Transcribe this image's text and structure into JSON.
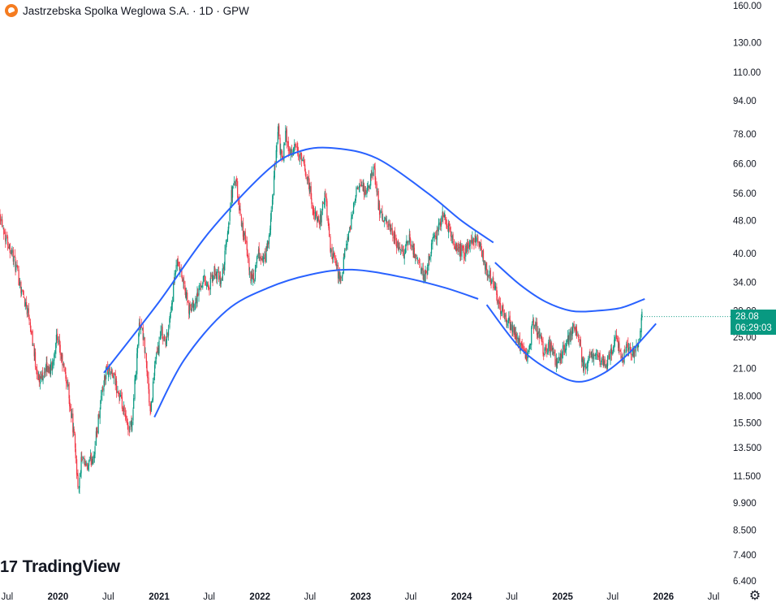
{
  "header": {
    "title": "Jastrzebska Spolka Weglowa S.A. · 1D · GPW"
  },
  "watermark": {
    "mark": "17",
    "text": "TradingView"
  },
  "last_price": {
    "value": "28.08",
    "countdown": "06:29:03",
    "color": "#089981"
  },
  "colors": {
    "up": "#089981",
    "down": "#f23645",
    "channel": "#2962ff"
  },
  "icons": {
    "settings": "gear-icon"
  },
  "chart_data": {
    "type": "candlestick",
    "y_scale": "log",
    "ylim": [
      6.2,
      165
    ],
    "xlim": [
      "2019-06-05",
      "2026-08-20"
    ],
    "y_ticks": [
      "160.00",
      "130.00",
      "110.00",
      "94.00",
      "78.00",
      "66.00",
      "56.00",
      "48.00",
      "40.00",
      "34.00",
      "29.00",
      "25.00",
      "21.00",
      "18.000",
      "15.500",
      "13.500",
      "11.500",
      "9.900",
      "8.500",
      "7.400",
      "6.400"
    ],
    "x_ticks": [
      {
        "label": "Jul",
        "date": "2019-07-01"
      },
      {
        "label": "2020",
        "date": "2020-01-01"
      },
      {
        "label": "Jul",
        "date": "2020-07-01"
      },
      {
        "label": "2021",
        "date": "2021-01-01"
      },
      {
        "label": "Jul",
        "date": "2021-07-01"
      },
      {
        "label": "2022",
        "date": "2022-01-01"
      },
      {
        "label": "Jul",
        "date": "2022-07-01"
      },
      {
        "label": "2023",
        "date": "2023-01-01"
      },
      {
        "label": "Jul",
        "date": "2023-07-01"
      },
      {
        "label": "2024",
        "date": "2024-01-01"
      },
      {
        "label": "Jul",
        "date": "2024-07-01"
      },
      {
        "label": "2025",
        "date": "2025-01-01"
      },
      {
        "label": "Jul",
        "date": "2025-07-01"
      },
      {
        "label": "2026",
        "date": "2026-01-01"
      },
      {
        "label": "Jul",
        "date": "2026-07-01"
      }
    ],
    "price_path": [
      [
        "2019-06-05",
        50
      ],
      [
        "2019-06-25",
        44
      ],
      [
        "2019-07-20",
        40
      ],
      [
        "2019-08-20",
        33
      ],
      [
        "2019-09-20",
        28
      ],
      [
        "2019-10-10",
        22
      ],
      [
        "2019-10-25",
        19.5
      ],
      [
        "2019-11-15",
        21
      ],
      [
        "2019-12-10",
        21
      ],
      [
        "2019-12-25",
        25
      ],
      [
        "2020-01-15",
        22
      ],
      [
        "2020-02-05",
        19
      ],
      [
        "2020-02-25",
        15
      ],
      [
        "2020-03-16",
        10.5
      ],
      [
        "2020-03-25",
        12.5
      ],
      [
        "2020-04-15",
        12
      ],
      [
        "2020-05-10",
        13
      ],
      [
        "2020-06-05",
        18
      ],
      [
        "2020-06-25",
        21
      ],
      [
        "2020-07-20",
        20
      ],
      [
        "2020-08-15",
        17.5
      ],
      [
        "2020-09-10",
        15
      ],
      [
        "2020-09-25",
        15.5
      ],
      [
        "2020-10-15",
        24
      ],
      [
        "2020-10-25",
        28
      ],
      [
        "2020-11-15",
        22
      ],
      [
        "2020-12-01",
        16
      ],
      [
        "2020-12-15",
        21
      ],
      [
        "2021-01-10",
        26
      ],
      [
        "2021-01-25",
        24
      ],
      [
        "2021-02-15",
        30
      ],
      [
        "2021-03-05",
        38
      ],
      [
        "2021-03-25",
        35
      ],
      [
        "2021-04-20",
        29
      ],
      [
        "2021-05-15",
        31
      ],
      [
        "2021-06-10",
        35
      ],
      [
        "2021-07-01",
        33
      ],
      [
        "2021-07-20",
        36
      ],
      [
        "2021-08-15",
        34
      ],
      [
        "2021-09-05",
        44
      ],
      [
        "2021-09-20",
        56
      ],
      [
        "2021-10-05",
        60
      ],
      [
        "2021-10-20",
        50
      ],
      [
        "2021-11-10",
        42
      ],
      [
        "2021-11-25",
        36
      ],
      [
        "2021-12-10",
        34
      ],
      [
        "2021-12-25",
        40
      ],
      [
        "2022-01-15",
        38
      ],
      [
        "2022-02-05",
        44
      ],
      [
        "2022-02-25",
        66
      ],
      [
        "2022-03-08",
        82
      ],
      [
        "2022-03-20",
        66
      ],
      [
        "2022-04-05",
        78
      ],
      [
        "2022-04-20",
        70
      ],
      [
        "2022-05-10",
        72
      ],
      [
        "2022-06-05",
        66
      ],
      [
        "2022-06-25",
        60
      ],
      [
        "2022-07-15",
        50
      ],
      [
        "2022-08-05",
        47
      ],
      [
        "2022-08-25",
        56
      ],
      [
        "2022-09-15",
        40
      ],
      [
        "2022-10-05",
        37
      ],
      [
        "2022-10-20",
        34
      ],
      [
        "2022-11-10",
        42
      ],
      [
        "2022-11-25",
        46
      ],
      [
        "2022-12-10",
        56
      ],
      [
        "2023-01-05",
        58
      ],
      [
        "2023-01-25",
        56
      ],
      [
        "2023-02-10",
        62
      ],
      [
        "2023-02-20",
        64
      ],
      [
        "2023-03-10",
        50
      ],
      [
        "2023-03-25",
        48
      ],
      [
        "2023-04-15",
        46
      ],
      [
        "2023-05-10",
        42
      ],
      [
        "2023-06-05",
        40
      ],
      [
        "2023-06-25",
        44
      ],
      [
        "2023-07-15",
        40
      ],
      [
        "2023-08-10",
        36
      ],
      [
        "2023-08-25",
        35
      ],
      [
        "2023-09-15",
        42
      ],
      [
        "2023-10-05",
        45
      ],
      [
        "2023-10-25",
        50
      ],
      [
        "2023-11-10",
        47
      ],
      [
        "2023-12-05",
        42
      ],
      [
        "2024-01-10",
        40
      ],
      [
        "2024-02-05",
        43
      ],
      [
        "2024-02-25",
        44
      ],
      [
        "2024-03-15",
        40
      ],
      [
        "2024-04-05",
        36
      ],
      [
        "2024-04-25",
        34
      ],
      [
        "2024-05-15",
        30
      ],
      [
        "2024-06-05",
        28
      ],
      [
        "2024-06-25",
        27
      ],
      [
        "2024-07-20",
        25
      ],
      [
        "2024-08-10",
        23
      ],
      [
        "2024-08-25",
        22
      ],
      [
        "2024-09-15",
        27
      ],
      [
        "2024-10-05",
        26
      ],
      [
        "2024-10-25",
        23
      ],
      [
        "2024-11-15",
        24
      ],
      [
        "2024-12-05",
        22
      ],
      [
        "2024-12-20",
        22.5
      ],
      [
        "2025-01-10",
        24
      ],
      [
        "2025-01-25",
        25
      ],
      [
        "2025-02-15",
        27
      ],
      [
        "2025-03-01",
        25
      ],
      [
        "2025-03-15",
        21
      ],
      [
        "2025-04-05",
        22
      ],
      [
        "2025-04-25",
        23
      ],
      [
        "2025-05-15",
        22
      ],
      [
        "2025-06-05",
        21.5
      ],
      [
        "2025-06-25",
        23
      ],
      [
        "2025-07-15",
        25
      ],
      [
        "2025-08-05",
        22
      ],
      [
        "2025-08-25",
        24
      ],
      [
        "2025-09-15",
        23
      ],
      [
        "2025-10-05",
        25
      ],
      [
        "2025-10-15",
        28.08
      ]
    ],
    "channels": [
      {
        "name": "upper-arc-1",
        "points": [
          [
            "2020-06-15",
            20.5
          ],
          [
            "2021-01-01",
            30.5
          ],
          [
            "2021-07-01",
            45
          ],
          [
            "2022-02-01",
            64
          ],
          [
            "2022-06-01",
            71
          ],
          [
            "2022-10-01",
            72
          ],
          [
            "2023-03-01",
            68
          ],
          [
            "2023-09-01",
            56
          ],
          [
            "2024-01-01",
            48
          ],
          [
            "2024-04-25",
            42.5
          ]
        ]
      },
      {
        "name": "lower-arc-1",
        "points": [
          [
            "2020-12-15",
            16
          ],
          [
            "2021-04-01",
            22
          ],
          [
            "2021-09-01",
            29
          ],
          [
            "2022-02-01",
            33
          ],
          [
            "2022-07-01",
            35.5
          ],
          [
            "2022-12-01",
            36.5
          ],
          [
            "2023-06-01",
            35
          ],
          [
            "2023-11-01",
            33
          ],
          [
            "2024-03-01",
            31
          ]
        ]
      },
      {
        "name": "upper-arc-2",
        "points": [
          [
            "2024-05-01",
            38
          ],
          [
            "2024-08-01",
            33.5
          ],
          [
            "2024-11-01",
            30.5
          ],
          [
            "2025-02-01",
            29
          ],
          [
            "2025-05-01",
            29
          ],
          [
            "2025-08-01",
            29.5
          ],
          [
            "2025-10-25",
            31
          ]
        ]
      },
      {
        "name": "lower-arc-2",
        "points": [
          [
            "2024-04-01",
            30
          ],
          [
            "2024-08-01",
            23.5
          ],
          [
            "2024-12-01",
            20.5
          ],
          [
            "2025-03-01",
            19.5
          ],
          [
            "2025-06-01",
            20.5
          ],
          [
            "2025-09-01",
            23
          ],
          [
            "2025-12-05",
            27
          ]
        ]
      }
    ]
  }
}
